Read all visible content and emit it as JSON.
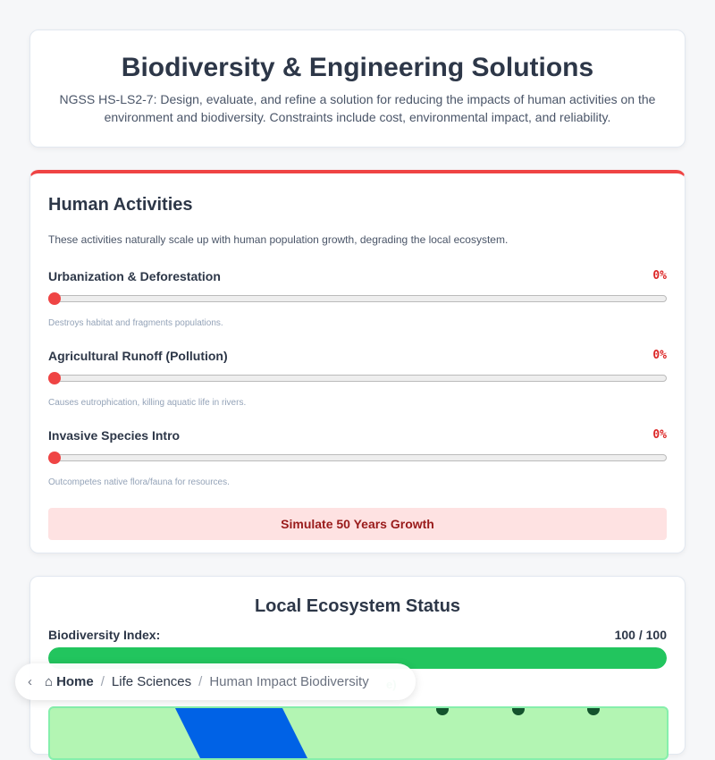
{
  "header": {
    "title": "Biodiversity & Engineering Solutions",
    "description": "NGSS HS-LS2-7: Design, evaluate, and refine a solution for reducing the impacts of human activities on the environment and biodiversity. Constraints include cost, environmental impact, and reliability."
  },
  "activities": {
    "title": "Human Activities",
    "description": "These activities naturally scale up with human population growth, degrading the local ecosystem.",
    "sliders": [
      {
        "label": "Urbanization & Deforestation",
        "value": "0%",
        "level": 0,
        "note": "Destroys habitat and fragments populations."
      },
      {
        "label": "Agricultural Runoff (Pollution)",
        "value": "0%",
        "level": 0,
        "note": "Causes eutrophication, killing aquatic life in rivers."
      },
      {
        "label": "Invasive Species Intro",
        "value": "0%",
        "level": 0,
        "note": "Outcompetes native flora/fauna for resources."
      }
    ],
    "simulate_label": "Simulate 50 Years Growth",
    "accent": "#ef4444"
  },
  "ecosystem": {
    "title": "Local Ecosystem Status",
    "index_label": "Biodiversity Index:",
    "index_value": "100 / 100",
    "index_level": 100,
    "status_partial": "e)",
    "bar_color": "#22c55e"
  },
  "breadcrumb": {
    "items": [
      "Home",
      "Life Sciences",
      "Human Impact Biodiversity"
    ]
  }
}
